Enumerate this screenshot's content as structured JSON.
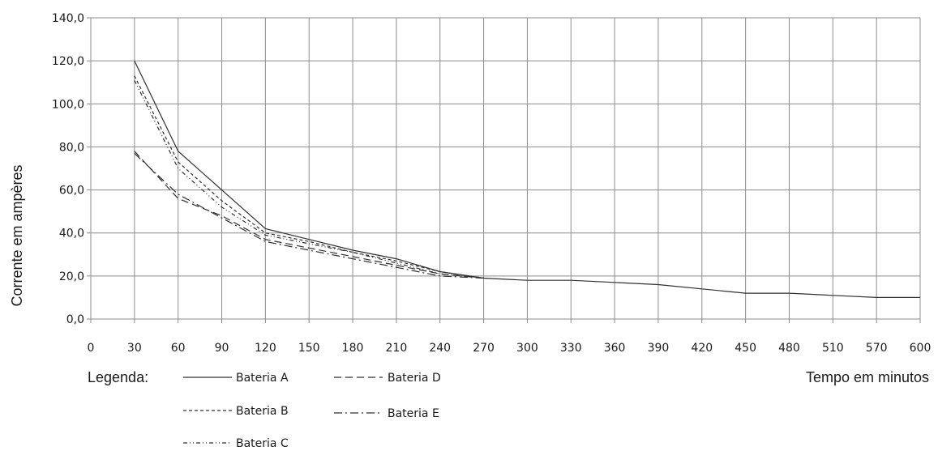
{
  "chart_data": {
    "type": "line",
    "xlabel": "Tempo em minutos",
    "ylabel": "Corrente em ampères",
    "x_tick_labels": [
      "0",
      "30",
      "60",
      "90",
      "120",
      "150",
      "180",
      "210",
      "240",
      "270",
      "300",
      "330",
      "360",
      "390",
      "420",
      "450",
      "480",
      "510",
      "570",
      "600"
    ],
    "y_tick_labels": [
      "0,0",
      "20,0",
      "40,0",
      "60,0",
      "80,0",
      "100,0",
      "120,0",
      "140,0"
    ],
    "ylim": [
      0,
      140
    ],
    "grid": true,
    "legend": {
      "title": "Legenda:",
      "position": "bottom-left",
      "entries": [
        "Bateria A",
        "Bateria B",
        "Bateria C",
        "Bateria D",
        "Bateria E"
      ]
    },
    "series": [
      {
        "name": "Bateria A",
        "x": [
          30,
          60,
          90,
          120,
          150,
          180,
          210,
          240,
          270,
          300,
          330,
          360,
          390,
          420,
          450,
          480,
          510,
          570,
          600
        ],
        "values": [
          120,
          78,
          60,
          42,
          37,
          32,
          28,
          22,
          19,
          18,
          18,
          17,
          16,
          14,
          12,
          12,
          11,
          10,
          10
        ]
      },
      {
        "name": "Bateria B",
        "x": [
          30,
          60,
          90,
          120,
          150,
          180,
          210,
          240,
          270
        ],
        "values": [
          113,
          73,
          55,
          40,
          36,
          31,
          27,
          22,
          19
        ]
      },
      {
        "name": "Bateria C",
        "x": [
          30,
          60,
          90,
          120,
          150,
          180,
          210,
          240,
          270
        ],
        "values": [
          111,
          70,
          52,
          39,
          35,
          31,
          26,
          21,
          19
        ]
      },
      {
        "name": "Bateria D",
        "x": [
          30,
          60,
          90,
          120,
          150,
          180,
          210,
          240,
          270
        ],
        "values": [
          78,
          56,
          48,
          37,
          33,
          29,
          25,
          21,
          19
        ]
      },
      {
        "name": "Bateria E",
        "x": [
          30,
          60,
          90,
          120,
          150,
          180,
          210,
          240,
          270
        ],
        "values": [
          77,
          58,
          47,
          36,
          32,
          28,
          24,
          20,
          19
        ]
      }
    ]
  },
  "styles": {
    "series_colors": [
      "#303030",
      "#303030",
      "#303030",
      "#303030",
      "#303030"
    ],
    "series_dash": [
      "solid",
      "dashed-short",
      "dash-dot-dot",
      "dashed",
      "dash-dot"
    ],
    "grid_color": "#8c8c8c",
    "text_color": "#1a1a1a"
  }
}
